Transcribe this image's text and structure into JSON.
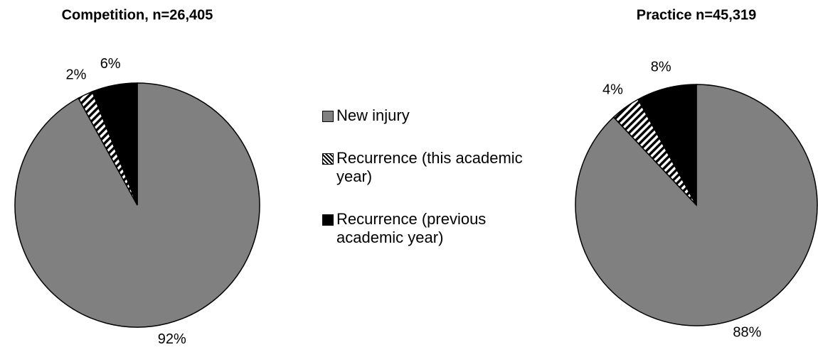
{
  "chart_data": [
    {
      "type": "pie",
      "title": "Competition, n=26,405",
      "categories": [
        "New injury",
        "Recurrence (this academic year)",
        "Recurrence (previous academic year)"
      ],
      "values": [
        92,
        2,
        6
      ],
      "value_labels": [
        "92%",
        "2%",
        "6%"
      ],
      "colors": [
        "#808080",
        "hatch",
        "#000000"
      ]
    },
    {
      "type": "pie",
      "title": "Practice n=45,319",
      "categories": [
        "New injury",
        "Recurrence (this academic year)",
        "Recurrence (previous academic year)"
      ],
      "values": [
        88,
        4,
        8
      ],
      "value_labels": [
        "88%",
        "4%",
        "8%"
      ],
      "colors": [
        "#808080",
        "hatch",
        "#000000"
      ]
    }
  ]
}
